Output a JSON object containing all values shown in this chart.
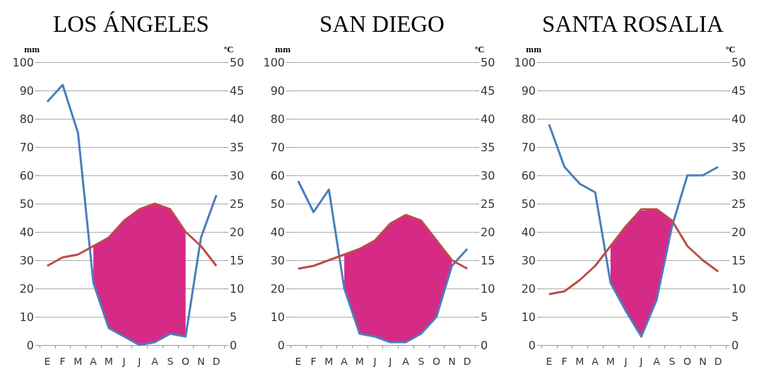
{
  "chart_data": [
    {
      "type": "line",
      "title": "LOS ÁNGELES",
      "ylabel": "mm",
      "y2label": "ºC",
      "categories": [
        "E",
        "F",
        "M",
        "A",
        "M",
        "J",
        "J",
        "A",
        "S",
        "O",
        "N",
        "D"
      ],
      "ylim": [
        0,
        100
      ],
      "yticks": [
        0,
        10,
        20,
        30,
        40,
        50,
        60,
        70,
        80,
        90,
        100
      ],
      "y2lim": [
        0,
        50
      ],
      "y2ticks": [
        0,
        5,
        10,
        15,
        20,
        25,
        30,
        35,
        40,
        45,
        50
      ],
      "grid": "y",
      "marker": "none",
      "series": [
        {
          "type": "area",
          "color": "#d62a87",
          "values": [
            null,
            null,
            null,
            35,
            38,
            44,
            48,
            50,
            48,
            40,
            null,
            null
          ]
        },
        {
          "color": "#4a7ebb",
          "values": [
            86,
            92,
            75,
            22,
            6,
            3,
            0,
            1,
            4,
            3,
            38,
            53
          ]
        },
        {
          "color": "#be4b48",
          "axis": "y2",
          "values": [
            14,
            15.5,
            16,
            17.5,
            19,
            22,
            24,
            25,
            24,
            20,
            17.5,
            14
          ]
        }
      ]
    },
    {
      "type": "line",
      "title": "SAN DIEGO",
      "ylabel": "mm",
      "y2label": "ºC",
      "categories": [
        "E",
        "F",
        "M",
        "A",
        "M",
        "J",
        "J",
        "A",
        "S",
        "O",
        "N",
        "D"
      ],
      "ylim": [
        0,
        100
      ],
      "yticks": [
        0,
        10,
        20,
        30,
        40,
        50,
        60,
        70,
        80,
        90,
        100
      ],
      "y2lim": [
        0,
        50
      ],
      "y2ticks": [
        0,
        5,
        10,
        15,
        20,
        25,
        30,
        35,
        40,
        45,
        50
      ],
      "grid": "y",
      "marker": "none",
      "series": [
        {
          "type": "area",
          "color": "#d62a87",
          "values": [
            null,
            null,
            null,
            32,
            34,
            37,
            43,
            46,
            44,
            37,
            30,
            null
          ]
        },
        {
          "color": "#4a7ebb",
          "values": [
            58,
            47,
            55,
            20,
            4,
            3,
            1,
            1,
            4,
            10,
            28,
            34
          ]
        },
        {
          "color": "#be4b48",
          "axis": "y2",
          "values": [
            13.5,
            14,
            15,
            16,
            17,
            18.5,
            21.5,
            23,
            22,
            18.5,
            15,
            13.5
          ]
        }
      ]
    },
    {
      "type": "line",
      "title": "SANTA ROSALIA",
      "ylabel": "mm",
      "y2label": "ºC",
      "categories": [
        "E",
        "F",
        "M",
        "A",
        "M",
        "J",
        "J",
        "A",
        "S",
        "O",
        "N",
        "D"
      ],
      "ylim": [
        0,
        100
      ],
      "yticks": [
        0,
        10,
        20,
        30,
        40,
        50,
        60,
        70,
        80,
        90,
        100
      ],
      "y2lim": [
        0,
        50
      ],
      "y2ticks": [
        0,
        5,
        10,
        15,
        20,
        25,
        30,
        35,
        40,
        45,
        50
      ],
      "grid": "y",
      "marker": "none",
      "series": [
        {
          "type": "area",
          "color": "#d62a87",
          "values": [
            null,
            null,
            null,
            null,
            35,
            42,
            47.5,
            48,
            44,
            null,
            null,
            null
          ]
        },
        {
          "color": "#4a7ebb",
          "values": [
            78,
            63,
            57,
            54,
            22,
            12,
            3,
            16,
            42,
            60,
            60,
            63
          ]
        },
        {
          "color": "#be4b48",
          "axis": "y2",
          "values": [
            9,
            9.5,
            11.5,
            14,
            17.5,
            21,
            24,
            24,
            22,
            17.5,
            15,
            13
          ]
        }
      ]
    }
  ]
}
